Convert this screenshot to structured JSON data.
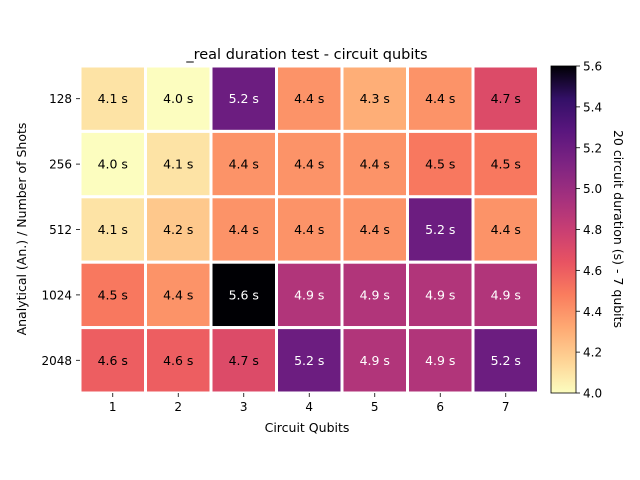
{
  "chart_data": {
    "type": "heatmap",
    "title": "_real duration test - circuit qubits",
    "xlabel": "Circuit Qubits",
    "ylabel": "Analytical (An.) / Number of Shots",
    "x": [
      "1",
      "2",
      "3",
      "4",
      "5",
      "6",
      "7"
    ],
    "y": [
      "128",
      "256",
      "512",
      "1024",
      "2048"
    ],
    "values": [
      [
        4.1,
        4.0,
        5.2,
        4.4,
        4.3,
        4.4,
        4.7
      ],
      [
        4.0,
        4.1,
        4.4,
        4.4,
        4.4,
        4.5,
        4.5
      ],
      [
        4.1,
        4.2,
        4.4,
        4.4,
        4.4,
        5.2,
        4.4
      ],
      [
        4.5,
        4.4,
        5.6,
        4.9,
        4.9,
        4.9,
        4.9
      ],
      [
        4.6,
        4.6,
        4.7,
        5.2,
        4.9,
        4.9,
        5.2
      ]
    ],
    "cell_labels": [
      [
        "4.1 s",
        "4.0 s",
        "5.2 s",
        "4.4 s",
        "4.3 s",
        "4.4 s",
        "4.7 s"
      ],
      [
        "4.0 s",
        "4.1 s",
        "4.4 s",
        "4.4 s",
        "4.4 s",
        "4.5 s",
        "4.5 s"
      ],
      [
        "4.1 s",
        "4.2 s",
        "4.4 s",
        "4.4 s",
        "4.4 s",
        "5.2 s",
        "4.4 s"
      ],
      [
        "4.5 s",
        "4.4 s",
        "5.6 s",
        "4.9 s",
        "4.9 s",
        "4.9 s",
        "4.9 s"
      ],
      [
        "4.6 s",
        "4.6 s",
        "4.7 s",
        "5.2 s",
        "4.9 s",
        "4.9 s",
        "5.2 s"
      ]
    ],
    "colorbar": {
      "label": "20 circuit duration (s) - 7 qubits",
      "range": [
        4.0,
        5.6
      ],
      "ticks": [
        "4.0",
        "4.2",
        "4.4",
        "4.6",
        "4.8",
        "5.0",
        "5.2",
        "5.4",
        "5.6"
      ],
      "colormap": "magma_r"
    },
    "grid": false,
    "colors": {
      "cell_border": "#ffffff",
      "cmap_stops": [
        "#fcfdbf",
        "#fed395",
        "#fea973",
        "#fa7d5e",
        "#e85362",
        "#c83e73",
        "#a3307e",
        "#7e2482",
        "#5a167e",
        "#331067",
        "#000004"
      ]
    }
  }
}
